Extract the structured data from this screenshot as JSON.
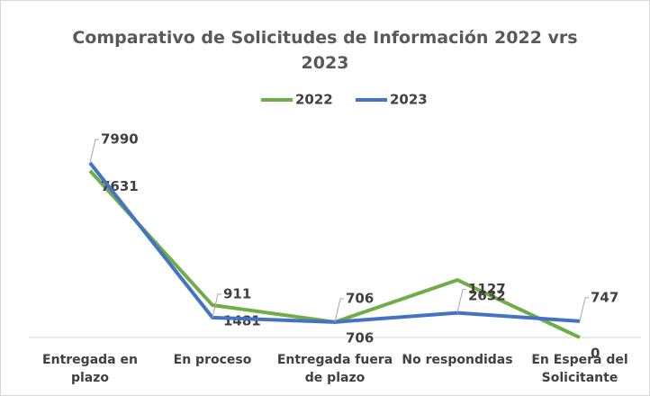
{
  "chart_data": {
    "type": "line",
    "title": "Comparativo de Solicitudes de Información 2022 vrs 2023",
    "categories": [
      "Entregada en plazo",
      "En proceso",
      "Entregada fuera de plazo",
      "No respondidas",
      "En Espera del Solicitante"
    ],
    "series": [
      {
        "name": "2022",
        "color": "#70ad47",
        "values": [
          7631,
          1481,
          706,
          2632,
          0
        ]
      },
      {
        "name": "2023",
        "color": "#4472c4",
        "values": [
          7990,
          911,
          706,
          1127,
          747
        ]
      }
    ]
  }
}
